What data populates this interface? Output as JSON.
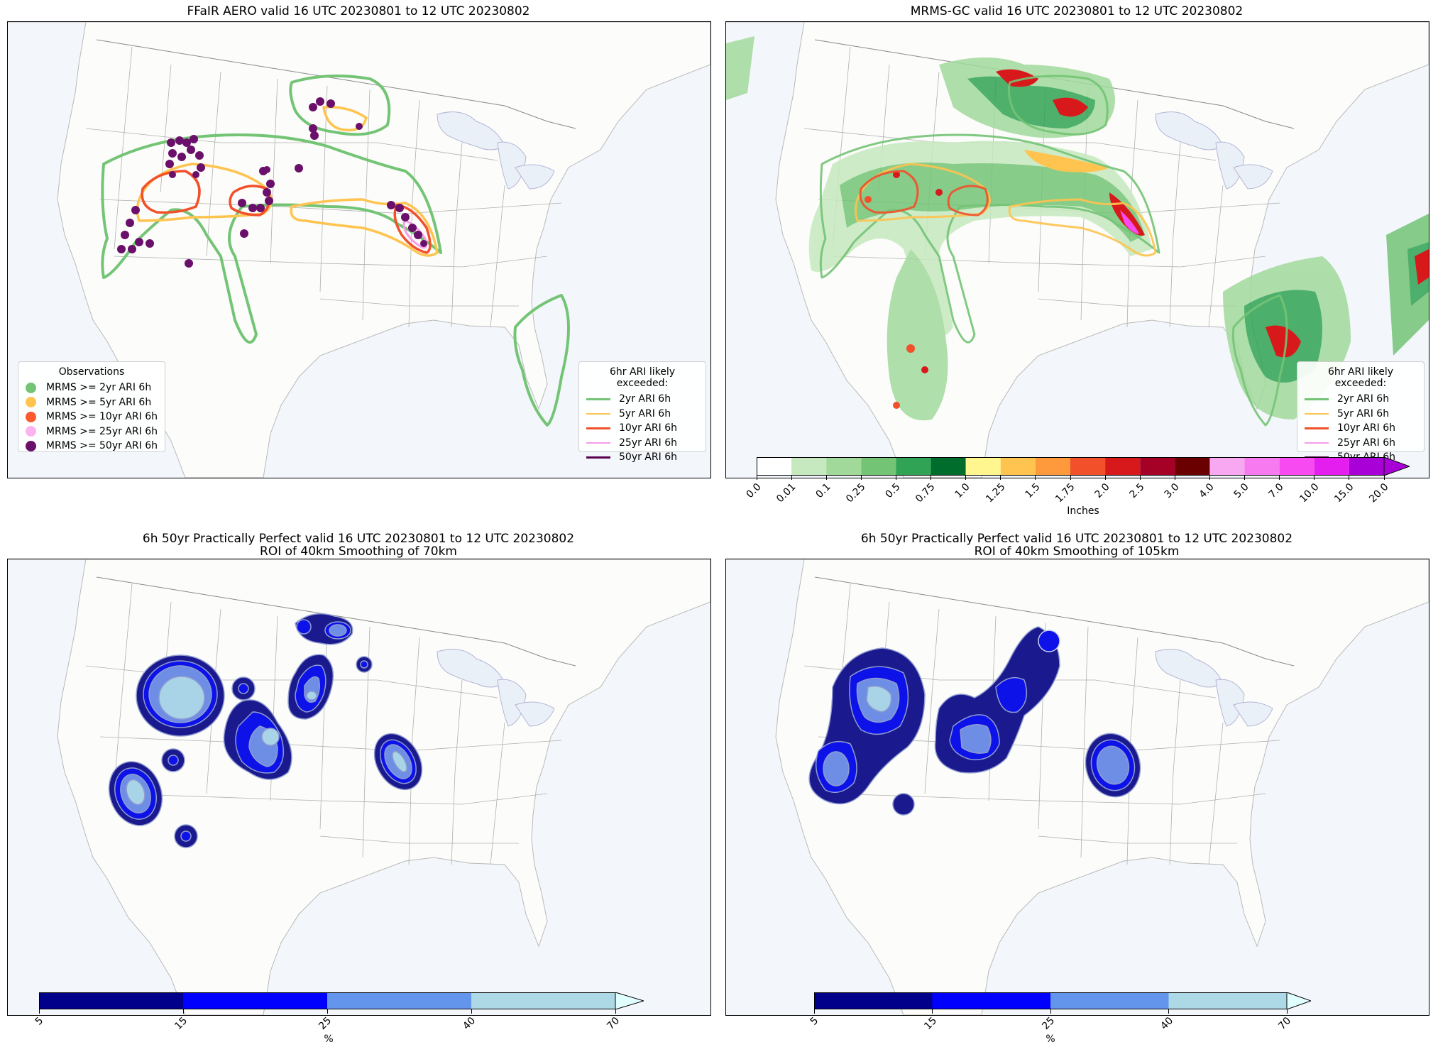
{
  "panels": {
    "top_left": {
      "title": "FFaIR AERO valid 16 UTC 20230801 to 12 UTC 20230802"
    },
    "top_right": {
      "title": "MRMS-GC valid 16 UTC 20230801 to 12 UTC 20230802"
    },
    "bottom_left": {
      "title_line1": "6h 50yr Practically Perfect valid 16 UTC 20230801 to 12 UTC 20230802",
      "title_line2": "ROI of 40km Smoothing of 70km"
    },
    "bottom_right": {
      "title_line1": "6h 50yr Practically Perfect valid 16 UTC 20230801 to 12 UTC 20230802",
      "title_line2": "ROI of 40km Smoothing of 105km"
    }
  },
  "observations_legend": {
    "title": "Observations",
    "items": [
      {
        "label": "MRMS >= 2yr ARI 6h",
        "color": "#74c476"
      },
      {
        "label": "MRMS >= 5yr ARI 6h",
        "color": "#fec44f"
      },
      {
        "label": "MRMS >= 10yr ARI 6h",
        "color": "#fb5a2f"
      },
      {
        "label": "MRMS >= 25yr ARI 6h",
        "color": "#fdb3f0"
      },
      {
        "label": "MRMS >= 50yr ARI 6h",
        "color": "#6a0f6a"
      }
    ]
  },
  "ari_legend": {
    "title": "6hr ARI likely exceeded:",
    "items": [
      {
        "label": "2yr ARI 6h",
        "color": "#74c476"
      },
      {
        "label": "5yr ARI 6h",
        "color": "#fec44f"
      },
      {
        "label": "10yr ARI 6h",
        "color": "#f1502a"
      },
      {
        "label": "25yr ARI 6h",
        "color": "#f79ce8"
      },
      {
        "label": "50yr ARI 6h",
        "color": "#5a0050"
      }
    ]
  },
  "precip_colorbar": {
    "label": "Inches",
    "ticks": [
      "0.0",
      "0.01",
      "0.1",
      "0.25",
      "0.5",
      "0.75",
      "1.0",
      "1.25",
      "1.5",
      "1.75",
      "2.0",
      "2.5",
      "3.0",
      "4.0",
      "5.0",
      "7.0",
      "10.0",
      "15.0",
      "20.0"
    ],
    "colors": [
      "#ffffff",
      "#c7e9c0",
      "#a1d99b",
      "#74c476",
      "#31a354",
      "#006d2c",
      "#fff68f",
      "#fec44f",
      "#fe9a3c",
      "#f1502a",
      "#d7191c",
      "#a50026",
      "#6b0000",
      "#f7a8f0",
      "#f77af0",
      "#f74af0",
      "#e51ef0",
      "#a900d8"
    ]
  },
  "pp_colorbar": {
    "label": "%",
    "ticks": [
      "5",
      "15",
      "25",
      "40",
      "70"
    ],
    "colors": [
      "#00008b",
      "#0000ff",
      "#6495ed",
      "#add8e6"
    ],
    "extend_color": "#e0ffff"
  }
}
